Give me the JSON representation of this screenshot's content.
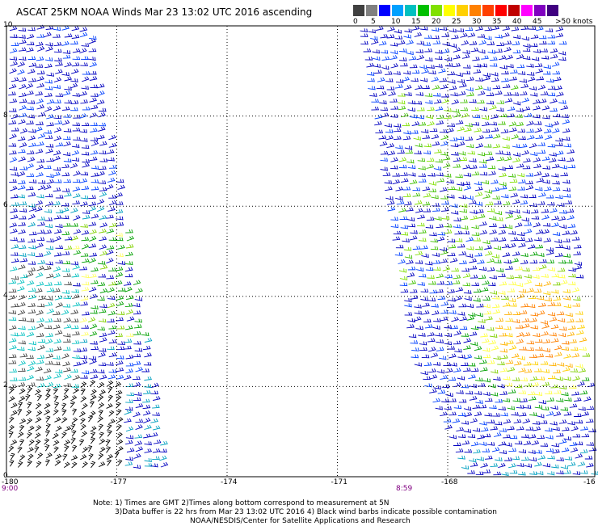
{
  "title": "ASCAT 25KM NOAA Winds Mar 23 13:02 UTC 2016 ascending",
  "color_scale": {
    "labels": [
      "0",
      "5",
      "10",
      "15",
      "20",
      "25",
      "30",
      "35",
      "40",
      "45",
      ">50 knots"
    ],
    "colors": [
      "#404040",
      "#808080",
      "#0000ff",
      "#00a0ff",
      "#00c0c0",
      "#00c000",
      "#80e000",
      "#ffff00",
      "#ffd000",
      "#ff8000",
      "#ff4000",
      "#ff0000",
      "#c00000",
      "#ff00ff",
      "#8000c0",
      "#400080"
    ]
  },
  "map": {
    "lon_labels": [
      "-180",
      "-177",
      "-174",
      "-171",
      "-168",
      "-16"
    ],
    "lat_labels": [
      "10",
      "8",
      "6",
      "4",
      "2",
      "0"
    ],
    "lon_range": [
      -180,
      -164
    ],
    "lat_range": [
      0,
      10
    ],
    "grid": "dotted"
  },
  "swaths": [
    {
      "name": "west",
      "time": "9:00"
    },
    {
      "name": "east",
      "time": "8:59"
    }
  ],
  "notes": [
    "Note: 1) Times are GMT 2)Times along bottom correspond to measurement at 5N",
    "3)Data buffer is 22 hrs from Mar 23 13:02 UTC 2016 4) Black wind barbs indicate possible contamination",
    "NOAA/NESDIS/Center for Satellite Applications and Research"
  ]
}
